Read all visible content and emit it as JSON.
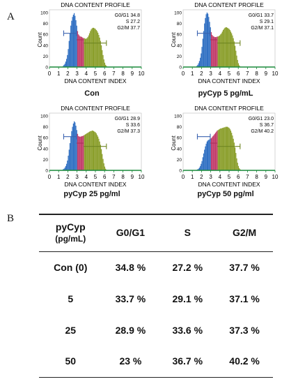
{
  "panel_a_label": "A",
  "panel_b_label": "B",
  "plots": [
    {
      "title": "DNA CONTENT PROFILE",
      "ylabel": "Count",
      "xlabel": "DNA CONTENT INDEX",
      "caption": "Con",
      "stats": [
        "G0/G1 34.8",
        "S 27.2",
        "G2/M 37.7"
      ],
      "yticks": [
        "0",
        "20",
        "40",
        "60",
        "80",
        "100"
      ],
      "xticks": [
        "0",
        "1",
        "2",
        "3",
        "4",
        "5",
        "6",
        "7",
        "8",
        "9",
        "10"
      ],
      "heights": [
        2,
        4,
        6,
        10,
        15,
        22,
        33,
        48,
        62,
        76,
        85,
        92,
        96,
        99,
        94,
        86,
        76,
        66,
        60,
        58,
        56,
        56,
        55,
        54,
        53,
        53,
        52,
        52,
        53,
        55,
        58,
        62,
        66,
        69,
        71,
        72,
        72,
        71,
        70,
        68,
        66,
        63,
        59,
        54,
        48,
        40,
        31,
        22,
        14,
        8,
        4,
        2
      ]
    },
    {
      "title": "DNA CONTENT PROFILE",
      "ylabel": "Count",
      "xlabel": "DNA CONTENT INDEX",
      "caption": "pyCyp 5 pg/mL",
      "stats": [
        "G0/G1 33.7",
        "S 29.1",
        "G2/M 37.1"
      ],
      "yticks": [
        "0",
        "20",
        "40",
        "60",
        "80",
        "100"
      ],
      "xticks": [
        "0",
        "1",
        "2",
        "3",
        "4",
        "5",
        "6",
        "7",
        "8",
        "9",
        "10"
      ],
      "heights": [
        2,
        4,
        7,
        11,
        17,
        25,
        37,
        52,
        66,
        80,
        90,
        97,
        100,
        98,
        92,
        83,
        73,
        64,
        59,
        57,
        56,
        55,
        55,
        55,
        56,
        56,
        57,
        58,
        60,
        62,
        65,
        68,
        70,
        72,
        73,
        73,
        72,
        71,
        70,
        68,
        65,
        62,
        58,
        53,
        47,
        39,
        30,
        21,
        13,
        7,
        3,
        1
      ]
    },
    {
      "title": "DNA CONTENT PROFILE",
      "ylabel": "Count",
      "xlabel": "DNA CONTENT INDEX",
      "caption": "pyCyp 25 pg/ml",
      "stats": [
        "G0/G1 28.9",
        "S 33.6",
        "G2/M 37.3"
      ],
      "yticks": [
        "0",
        "20",
        "40",
        "60",
        "80",
        "100"
      ],
      "xticks": [
        "0",
        "1",
        "2",
        "3",
        "4",
        "5",
        "6",
        "7",
        "8",
        "9",
        "10"
      ],
      "heights": [
        2,
        3,
        5,
        8,
        12,
        18,
        27,
        38,
        50,
        62,
        72,
        80,
        86,
        90,
        88,
        82,
        74,
        67,
        63,
        62,
        62,
        62,
        63,
        63,
        64,
        65,
        66,
        67,
        68,
        69,
        70,
        71,
        72,
        72,
        73,
        73,
        72,
        71,
        70,
        68,
        65,
        62,
        58,
        53,
        47,
        39,
        30,
        21,
        13,
        7,
        3,
        1
      ]
    },
    {
      "title": "DNA CONTENT PROFILE",
      "ylabel": "Count",
      "xlabel": "DNA CONTENT INDEX",
      "caption": "pyCyp 50 pg/ml",
      "stats": [
        "G0/G1 23.0",
        "S 36.7",
        "G2/M 40.2"
      ],
      "yticks": [
        "0",
        "20",
        "40",
        "60",
        "80",
        "100"
      ],
      "xticks": [
        "0",
        "1",
        "2",
        "3",
        "4",
        "5",
        "6",
        "7",
        "8",
        "9",
        "10"
      ],
      "heights": [
        1,
        2,
        3,
        5,
        8,
        12,
        17,
        24,
        31,
        38,
        44,
        49,
        53,
        55,
        56,
        57,
        58,
        59,
        61,
        63,
        65,
        67,
        69,
        71,
        73,
        74,
        75,
        76,
        77,
        77,
        78,
        78,
        79,
        79,
        80,
        80,
        80,
        79,
        78,
        76,
        73,
        69,
        64,
        58,
        51,
        42,
        32,
        22,
        14,
        8,
        4,
        2
      ]
    }
  ],
  "table": {
    "header": {
      "col1_line1": "pyCyp",
      "col1_line2": "(pg/mL)",
      "col2": "G0/G1",
      "col3": "S",
      "col4": "G2/M"
    },
    "rows": [
      {
        "dose": "Con (0)",
        "g0g1": "34.8 %",
        "s": "27.2 %",
        "g2m": "37.7 %"
      },
      {
        "dose": "5",
        "g0g1": "33.7 %",
        "s": "29.1 %",
        "g2m": "37.1 %"
      },
      {
        "dose": "25",
        "g0g1": "28.9 %",
        "s": "33.6 %",
        "g2m": "37.3 %"
      },
      {
        "dose": "50",
        "g0g1": "23 %",
        "s": "36.7 %",
        "g2m": "40.2 %"
      }
    ]
  },
  "colors": {
    "g0g1": "#2f6fc2",
    "s": "#c23b6a",
    "g2m": "#8a9e2a",
    "axis": "#1a8a3a",
    "marker": "#3a62b0",
    "marker_s": "#a8305a",
    "marker_g2m": "#6f8622"
  }
}
